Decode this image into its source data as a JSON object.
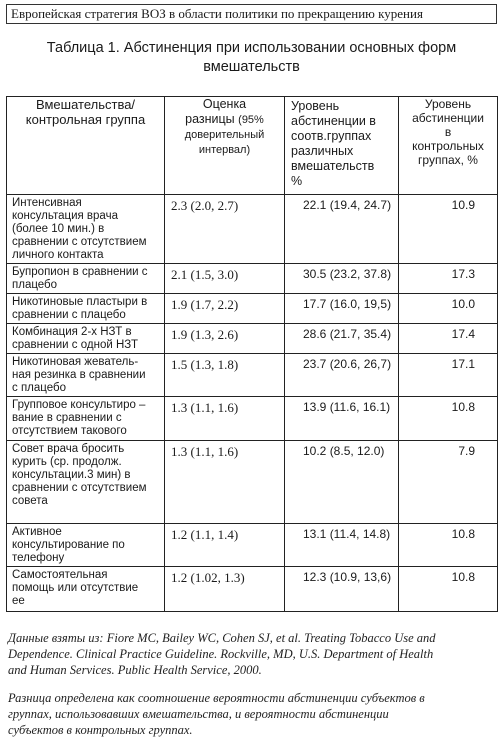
{
  "running_head": "Европейская стратегия ВОЗ в области политики по прекращению курения",
  "caption_line1": "Таблица 1. Абстиненция при использовании основных форм",
  "caption_line2": "вмешательств",
  "headers": {
    "col1_line1": "Вмешательства/",
    "col1_line2": "контрольная группа",
    "col2_line1": "Оценка",
    "col2_line2": "разницы",
    "col2_small": "(95%",
    "col2_line3": "доверительный",
    "col2_line4": "интервал)",
    "col3_line1": "Уровень",
    "col3_line2": "абстиненции в",
    "col3_line3": "соотв.группах",
    "col3_line4": "различных",
    "col3_line5": "вмешательств",
    "col3_line6": "%",
    "col4_line1": "Уровень",
    "col4_line2": "абстиненции",
    "col4_line3": "в",
    "col4_line4": "контрольных",
    "col4_line5": "группах, %"
  },
  "rows": [
    {
      "l1": "Интенсивная",
      "l2": "консультация врача",
      "l3": "(более 10 мин.) в",
      "l4": "сравнении с  отсутствием",
      "l5": "личного контакта",
      "estimate": "2.3 (2.0, 2.7)",
      "level": "22.1 (19.4, 24.7)",
      "control": "10.9"
    },
    {
      "l1": "Бупропион в сравнении с",
      "l2": "плацебо",
      "estimate": "2.1 (1.5, 3.0)",
      "level": "30.5 (23.2, 37.8)",
      "control": "17.3"
    },
    {
      "l1": "Никотиновые пластыри в",
      "l2": "сравнении с плацебо",
      "estimate": "1.9 (1.7, 2.2)",
      "level": "17.7 (16.0, 19,5)",
      "control": "10.0"
    },
    {
      "l1": "Комбинация 2-х НЗТ в",
      "l2": "сравнении с одной НЗТ",
      "estimate": "1.9 (1.3, 2.6)",
      "level": "28.6 (21.7, 35.4)",
      "control": "17.4"
    },
    {
      "l1": "Никотиновая жеватель-",
      "l2": "ная резинка в сравнении",
      "l3": "с плацебо",
      "estimate": "1.5 (1.3, 1.8)",
      "level": "23.7 (20.6, 26,7)",
      "control": "17.1"
    },
    {
      "l1": "Групповое консультиро –",
      "l2": "вание в сравнении с",
      "l3": "отсутствием такового",
      "estimate": "1.3 (1.1, 1.6)",
      "level": "13.9 (11.6, 16.1)",
      "control": "10.8"
    },
    {
      "l1": "Совет врача бросить",
      "l2": "курить (ср. продолж.",
      "l3": "консультации.3 мин) в",
      "l4": "сравнении с отсутствием",
      "l5": "совета",
      "estimate": "1.3 (1.1, 1.6)",
      "level": "10.2 (8.5, 12.0)",
      "control": "7.9"
    },
    {
      "l1": "Активное",
      "l2": "консультирование по",
      "l3": "телефону",
      "estimate": "1.2 (1.1, 1.4)",
      "level": "13.1 (11.4, 14.8)",
      "control": "10.8"
    },
    {
      "l1": "Самостоятельная",
      "l2": "помощь или отсутствие",
      "l3": "ее",
      "estimate": "1.2 (1.02, 1.3)",
      "level": "12.3 (10.9, 13,6)",
      "control": "10.8"
    }
  ],
  "notes": {
    "source_line1": "Данные взяты из: Fiore MC, Bailey WC, Cohen SJ, et al. Treating Tobacco Use and",
    "source_line2": "Dependence. Clinical Practice Guideline. Rockville, MD, U.S. Department of Health",
    "source_line3": "and Human Services. Public Health Service, 2000.",
    "def_line1": "Разница определена как соотношение вероятности абстиненции субъектов в",
    "def_line2": "группах, использовавших вмешательства, и вероятности абстиненции",
    "def_line3": "субъектов в контрольных группах."
  }
}
